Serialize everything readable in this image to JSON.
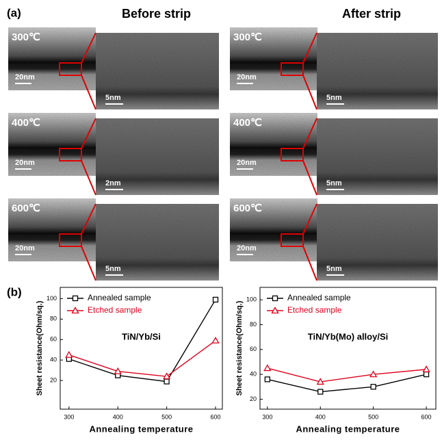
{
  "panel_a": {
    "label": "(a)",
    "columns": [
      {
        "title": "Before strip",
        "rows": [
          {
            "temperature": "300℃",
            "scale_large": "20nm",
            "scale_zoom": "5nm"
          },
          {
            "temperature": "400℃",
            "scale_large": "20nm",
            "scale_zoom": "2nm"
          },
          {
            "temperature": "600℃",
            "scale_large": "20nm",
            "scale_zoom": "5nm"
          }
        ]
      },
      {
        "title": "After strip",
        "rows": [
          {
            "temperature": "300℃",
            "scale_large": "20nm",
            "scale_zoom": "5nm"
          },
          {
            "temperature": "400℃",
            "scale_large": "20nm",
            "scale_zoom": "5nm"
          },
          {
            "temperature": "600℃",
            "scale_large": "20nm",
            "scale_zoom": "5nm"
          }
        ]
      }
    ]
  },
  "panel_b_label": "(b)",
  "chart_data": [
    {
      "type": "line",
      "annotation": "TiN/Yb/Si",
      "x_label": "Annealing temperature",
      "y_label": "Sheet resistance(Ohm/sq.)",
      "x": [
        300,
        400,
        500,
        600
      ],
      "xlim": [
        282,
        614
      ],
      "xticks": [
        300,
        400,
        500,
        600
      ],
      "ylim": [
        -8,
        111
      ],
      "yticks": [
        20,
        40,
        60,
        80,
        100
      ],
      "series": [
        {
          "name": "Annealed sample",
          "color": "#000000",
          "marker": "square",
          "values": [
            41,
            25,
            19,
            99
          ]
        },
        {
          "name": "Etched sample",
          "color": "#e0001a",
          "marker": "triangle",
          "values": [
            45,
            29,
            24,
            59
          ]
        }
      ]
    },
    {
      "type": "line",
      "annotation": "TiN/Yb(Mo) alloy/Si",
      "x_label": "Annealing temperature",
      "y_label": "Sheet resistance(Ohm/sq.)",
      "x": [
        300,
        400,
        500,
        600
      ],
      "xlim": [
        286,
        618
      ],
      "xticks": [
        300,
        400,
        500,
        600
      ],
      "ylim": [
        12,
        110
      ],
      "yticks": [
        20,
        40,
        60,
        80,
        100
      ],
      "series": [
        {
          "name": "Annealed sample",
          "color": "#000000",
          "marker": "square",
          "values": [
            36,
            26,
            30,
            40
          ]
        },
        {
          "name": "Etched sample",
          "color": "#e0001a",
          "marker": "triangle",
          "values": [
            45,
            34,
            40,
            44
          ]
        }
      ]
    }
  ]
}
